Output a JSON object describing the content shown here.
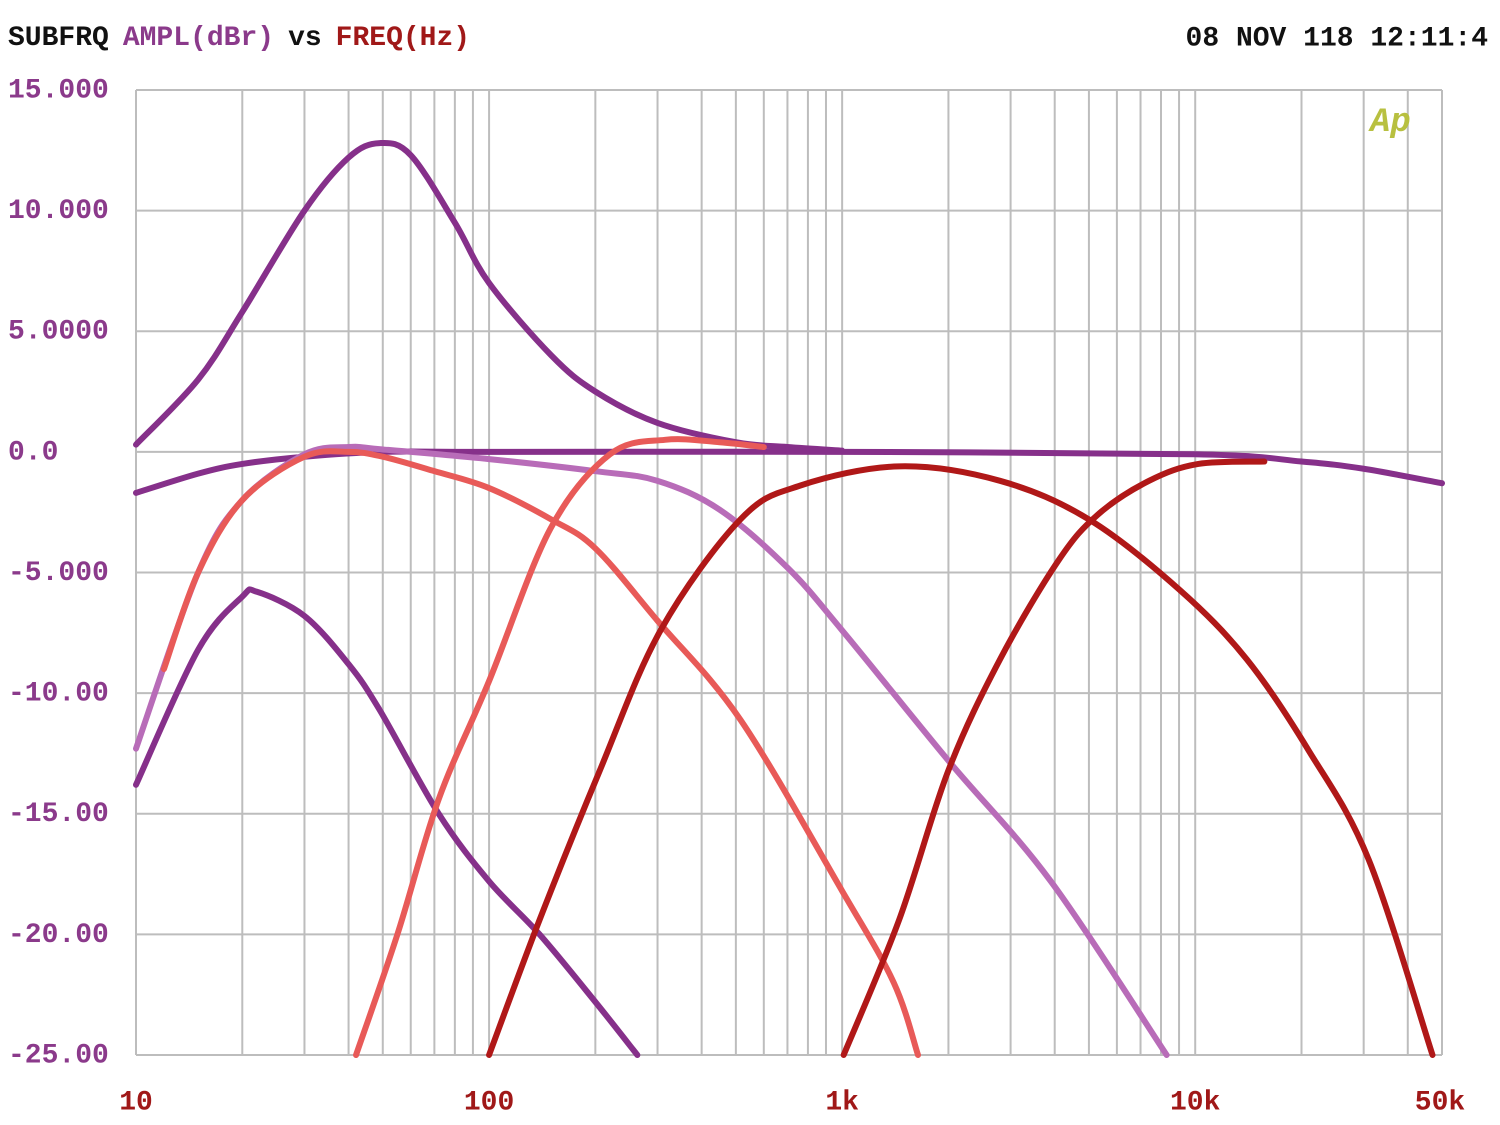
{
  "chart_data": {
    "type": "line",
    "title_parts": [
      {
        "text": "SUBFRQ",
        "color": "#111111"
      },
      {
        "text": "AMPL(dBr)",
        "color": "#8b3a8b"
      },
      {
        "text": "vs",
        "color": "#111111"
      },
      {
        "text": "FREQ(Hz)",
        "color": "#a01818"
      }
    ],
    "timestamp": "08 NOV 118 12:11:4",
    "logo": "Ap",
    "xscale": "log",
    "xlim": [
      10,
      50000
    ],
    "ylim": [
      -25,
      15
    ],
    "grid": true,
    "xticks": [
      10,
      100,
      {
        "value": 1000,
        "label": "1k"
      },
      {
        "value": 10000,
        "label": "10k"
      },
      {
        "value": 50000,
        "label": "50k"
      }
    ],
    "x_minor_grid": [
      20,
      30,
      40,
      50,
      60,
      70,
      80,
      90,
      200,
      300,
      400,
      500,
      600,
      700,
      800,
      900,
      2000,
      3000,
      4000,
      5000,
      6000,
      7000,
      8000,
      9000,
      20000,
      30000,
      40000
    ],
    "yticks": [
      {
        "value": 15,
        "label": "15.000"
      },
      {
        "value": 10,
        "label": "10.000"
      },
      {
        "value": 5,
        "label": "5.0000"
      },
      {
        "value": 0,
        "label": "0.0"
      },
      {
        "value": -5,
        "label": "-5.000"
      },
      {
        "value": -10,
        "label": "-10.00"
      },
      {
        "value": -15,
        "label": "-15.00"
      },
      {
        "value": -20,
        "label": "-20.00"
      },
      {
        "value": -25,
        "label": "-25.00"
      }
    ],
    "series": [
      {
        "color": "#86308a",
        "x": [
          10,
          15,
          20,
          30,
          40,
          49,
          60,
          80,
          100,
          150,
          200,
          300,
          500,
          700,
          1000
        ],
        "values": [
          0.3,
          3,
          5.8,
          10,
          12.2,
          12.8,
          12.3,
          9.5,
          7,
          4,
          2.5,
          1.2,
          0.4,
          0.2,
          0.05
        ]
      },
      {
        "color": "#86308a",
        "x": [
          10,
          15,
          20,
          30,
          50,
          100,
          1000,
          10000,
          20000,
          30000,
          50000
        ],
        "values": [
          -1.7,
          -0.9,
          -0.5,
          -0.2,
          0,
          0,
          0,
          -0.1,
          -0.4,
          -0.7,
          -1.3
        ]
      },
      {
        "color": "#86308a",
        "x": [
          10,
          15,
          20,
          22,
          30,
          40,
          49,
          72,
          100,
          139,
          200,
          263
        ],
        "values": [
          -13.8,
          -8.2,
          -6,
          -5.8,
          -6.8,
          -8.8,
          -10.7,
          -15,
          -17.8,
          -20,
          -22.8,
          -25
        ]
      },
      {
        "color": "#b86cb8",
        "x": [
          10,
          15,
          20,
          30,
          40,
          50,
          100,
          200,
          300,
          450,
          700,
          1000,
          2000,
          3900,
          8300
        ],
        "values": [
          -12.3,
          -5,
          -2,
          -0.1,
          0.2,
          0.1,
          -0.3,
          -0.8,
          -1.2,
          -2.4,
          -4.8,
          -7.4,
          -12.8,
          -17.8,
          -25
        ]
      },
      {
        "color": "#e85a58",
        "x": [
          12,
          15,
          20,
          30,
          40,
          50,
          70,
          100,
          150,
          200,
          300,
          515,
          1000,
          1400,
          1640
        ],
        "values": [
          -9,
          -5,
          -2,
          -0.2,
          0,
          -0.2,
          -0.8,
          -1.5,
          -2.8,
          -4,
          -7,
          -11.1,
          -18.2,
          -22,
          -25
        ]
      },
      {
        "color": "#e85a58",
        "x": [
          42,
          55,
          72,
          100,
          149,
          220,
          315,
          450,
          600
        ],
        "values": [
          -25,
          -20,
          -14.4,
          -9.5,
          -3.2,
          -0.1,
          0.5,
          0.4,
          0.2
        ]
      },
      {
        "color": "#b01818",
        "x": [
          100,
          139,
          206,
          306,
          515,
          760,
          1450,
          2800,
          5000,
          9000,
          14000,
          21000,
          31000,
          47000
        ],
        "values": [
          -25,
          -19.4,
          -13.2,
          -7.4,
          -2.8,
          -1.4,
          -0.6,
          -1.2,
          -2.8,
          -5.7,
          -8.6,
          -12.4,
          -16.9,
          -25
        ]
      },
      {
        "color": "#b01818",
        "x": [
          1010,
          1450,
          2000,
          2800,
          4100,
          5300,
          7400,
          10200,
          15700
        ],
        "values": [
          -25,
          -19.4,
          -13.2,
          -8.6,
          -4.5,
          -2.6,
          -1.2,
          -0.5,
          -0.4
        ]
      }
    ]
  }
}
